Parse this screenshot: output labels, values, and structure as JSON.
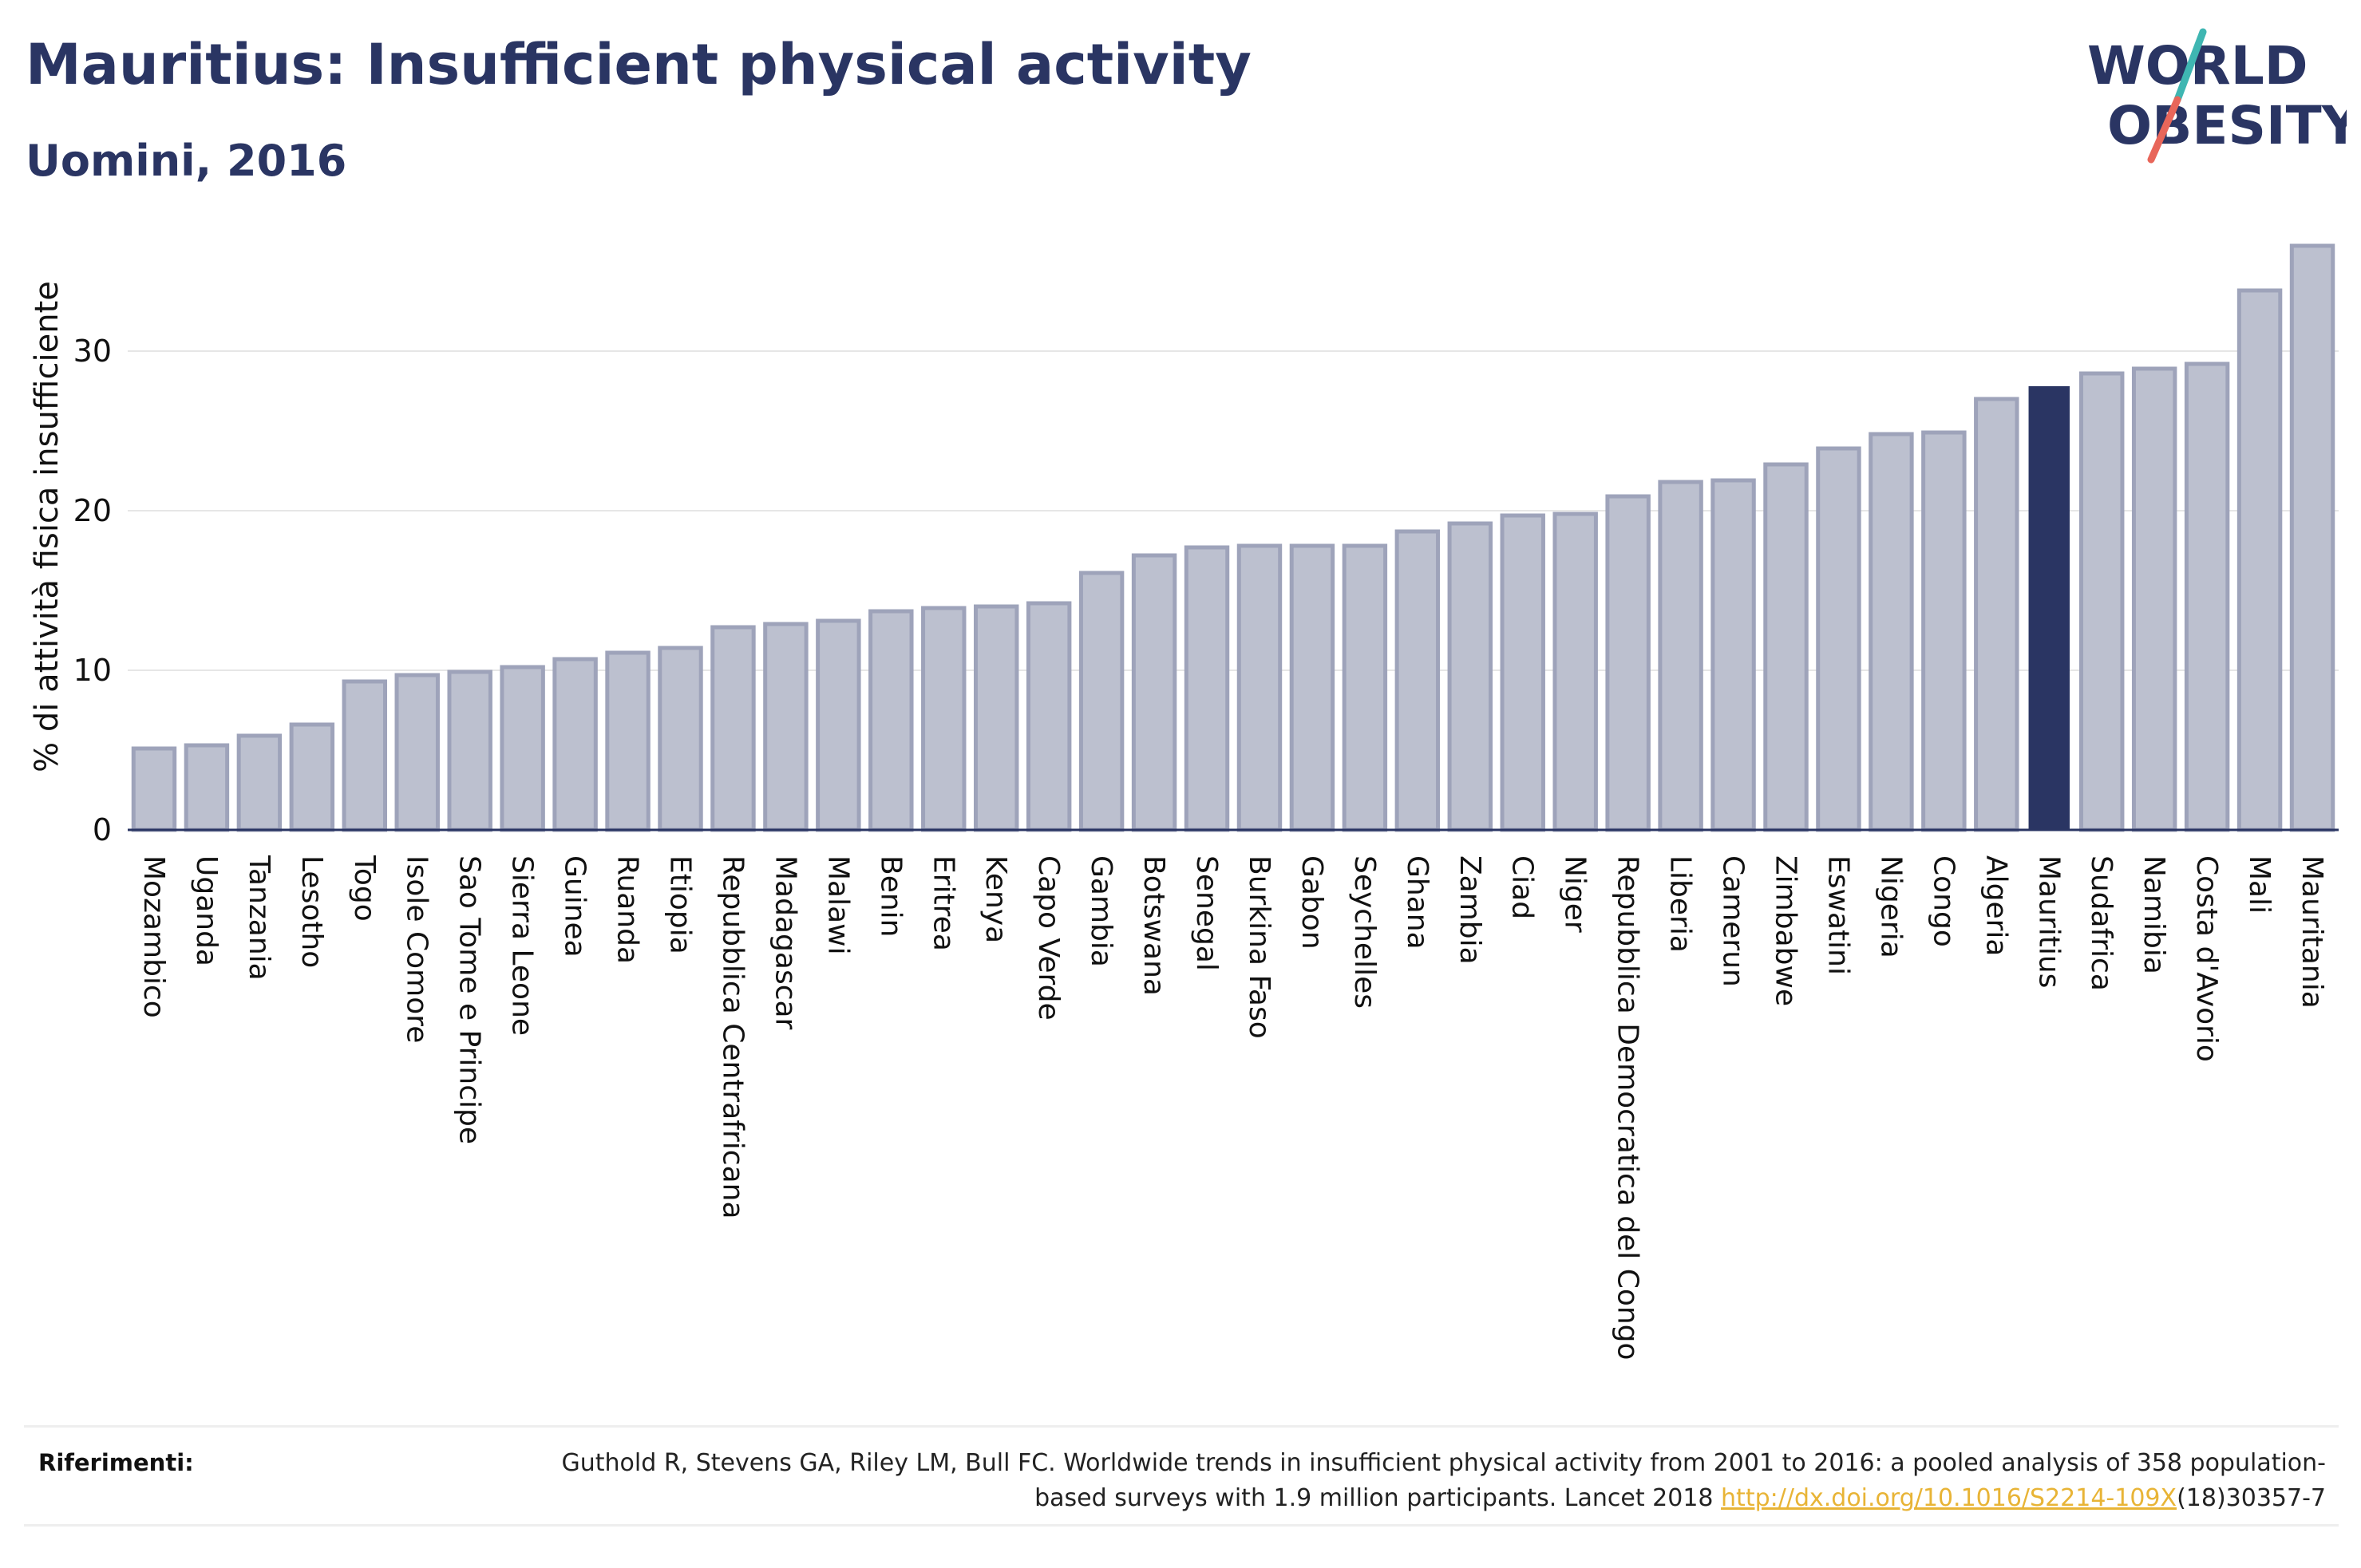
{
  "header": {
    "title": "Mauritius: Insufficient physical activity",
    "subtitle": "Uomini, 2016"
  },
  "logo": {
    "line1": "WORLD",
    "line2": "OBESITY"
  },
  "colors": {
    "bar": "#bcc0cf",
    "bar_stroke": "#9ea3ba",
    "highlight": "#2a3563",
    "text": "#2a3563",
    "link": "#e8b436",
    "logo_teal": "#3fb6b2",
    "logo_red": "#e8665a"
  },
  "chart_data": {
    "type": "bar",
    "title": "Mauritius: Insufficient physical activity",
    "subtitle": "Uomini, 2016",
    "xlabel": "",
    "ylabel": "% di attività fisica insufficiente",
    "ylim": [
      0,
      37
    ],
    "yticks": [
      0,
      10,
      20,
      30
    ],
    "grid": true,
    "highlight": "Mauritius",
    "categories": [
      "Mozambico",
      "Uganda",
      "Tanzania",
      "Lesotho",
      "Togo",
      "Isole Comore",
      "Sao Tome e Principe",
      "Sierra Leone",
      "Guinea",
      "Ruanda",
      "Etiopia",
      "Repubblica Centrafricana",
      "Madagascar",
      "Malawi",
      "Benin",
      "Eritrea",
      "Kenya",
      "Capo Verde",
      "Gambia",
      "Botswana",
      "Senegal",
      "Burkina Faso",
      "Gabon",
      "Seychelles",
      "Ghana",
      "Zambia",
      "Ciad",
      "Niger",
      "Repubblica Democratica del Congo",
      "Liberia",
      "Camerun",
      "Zimbabwe",
      "Eswatini",
      "Nigeria",
      "Congo",
      "Algeria",
      "Mauritius",
      "Sudafrica",
      "Namibia",
      "Costa d'Avorio",
      "Mali",
      "Mauritania"
    ],
    "values": [
      5.1,
      5.3,
      5.9,
      6.6,
      9.3,
      9.7,
      9.9,
      10.2,
      10.7,
      11.1,
      11.4,
      12.7,
      12.9,
      13.1,
      13.7,
      13.9,
      14.0,
      14.2,
      16.1,
      17.2,
      17.7,
      17.8,
      17.8,
      17.8,
      18.7,
      19.2,
      19.7,
      19.8,
      20.9,
      21.8,
      21.9,
      22.9,
      23.9,
      24.8,
      24.9,
      27.0,
      27.8,
      28.6,
      28.9,
      29.2,
      33.8,
      36.6
    ]
  },
  "references": {
    "label": "Riferimenti:",
    "text_before": "Guthold R, Stevens GA, Riley LM, Bull FC. Worldwide trends in insufficient physical activity from 2001 to 2016: a pooled analysis of 358 population-based surveys with 1.9 million participants. Lancet 2018 ",
    "link": "http://dx.doi.org/10.1016/S2214-109X",
    "text_after": "(18)30357-7"
  }
}
